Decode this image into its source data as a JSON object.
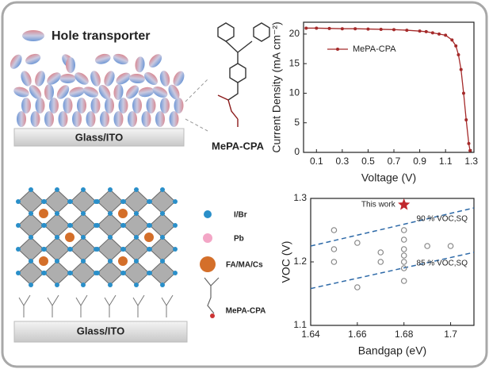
{
  "labels": {
    "hole_transporter": "Hole transporter",
    "glass_top": "Glass/ITO",
    "molecule_top": "MePA-CPA",
    "ion_i": "I/Br",
    "ion_pb": "Pb",
    "ion_a": "FA/MA/Cs",
    "molecule_bottom": "MePA-CPA",
    "glass_bottom": "Glass/ITO"
  },
  "chart_data": [
    {
      "type": "line",
      "xlabel": "Voltage (V)",
      "ylabel": "Current Density (mA cm⁻²)",
      "x": [
        0.02,
        0.1,
        0.2,
        0.3,
        0.4,
        0.5,
        0.6,
        0.7,
        0.8,
        0.9,
        0.95,
        1.0,
        1.05,
        1.1,
        1.15,
        1.18,
        1.2,
        1.22,
        1.24,
        1.26,
        1.28,
        1.29
      ],
      "series": [
        {
          "name": "MePA-CPA",
          "color": "#a52a2a",
          "values": [
            21.0,
            21.0,
            20.95,
            20.9,
            20.9,
            20.85,
            20.8,
            20.75,
            20.65,
            20.5,
            20.4,
            20.2,
            20.0,
            19.8,
            19.0,
            18.0,
            16.5,
            14.0,
            10.0,
            5.5,
            1.5,
            0.3
          ]
        }
      ],
      "xlim": [
        0,
        1.32
      ],
      "xticks": [
        0.1,
        0.3,
        0.5,
        0.7,
        0.9,
        1.1,
        1.3
      ],
      "ylim": [
        0,
        22
      ],
      "yticks": [
        0,
        5,
        10,
        15,
        20
      ],
      "legend": "upper left"
    },
    {
      "type": "scatter",
      "xlabel": "Bandgap (eV)",
      "ylabel": "VOC (V)",
      "x": [
        1.65,
        1.65,
        1.65,
        1.66,
        1.66,
        1.67,
        1.67,
        1.68,
        1.68,
        1.68,
        1.68,
        1.68,
        1.68,
        1.68,
        1.69,
        1.7
      ],
      "values": [
        1.25,
        1.22,
        1.2,
        1.23,
        1.16,
        1.215,
        1.2,
        1.25,
        1.235,
        1.22,
        1.21,
        1.2,
        1.19,
        1.17,
        1.225,
        1.225
      ],
      "color": "#888888",
      "highlight": {
        "label": "This work",
        "x": 1.68,
        "y": 1.29,
        "color": "#c0272d"
      },
      "lines": [
        {
          "label": "90 % VOC,SQ",
          "x": [
            1.64,
            1.71
          ],
          "values": [
            1.225,
            1.285
          ]
        },
        {
          "label": "85 % VOC,SQ",
          "x": [
            1.64,
            1.71
          ],
          "values": [
            1.158,
            1.215
          ]
        }
      ],
      "line_color": "#2e6aa8",
      "xlim": [
        1.64,
        1.71
      ],
      "xticks": [
        1.64,
        1.66,
        1.68,
        1.7
      ],
      "ylim": [
        1.1,
        1.3
      ],
      "yticks": [
        1.1,
        1.2,
        1.3
      ]
    }
  ]
}
